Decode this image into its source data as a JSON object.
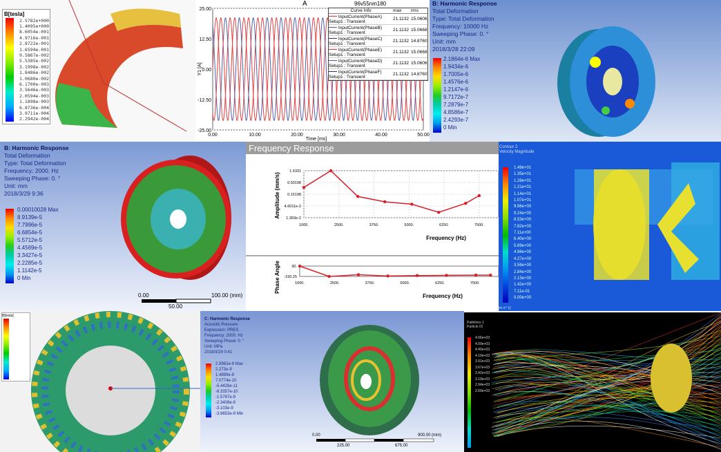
{
  "panel_magnet": {
    "legend_title": "B[tesla]",
    "levels": [
      "2.5782e+000",
      "1.4095e+000",
      "8.6054e-001",
      "4.9716e-001",
      "2.8722e-001",
      "1.6594e-001",
      "9.5867e-002",
      "5.5385e-002",
      "3.1998e-002",
      "1.8486e-002",
      "1.0680e-002",
      "6.1700e-003",
      "3.5646e-003",
      "2.0594e-003",
      "1.1898e-003",
      "6.8736e-004",
      "3.9711e-004",
      "2.2942e-004"
    ]
  },
  "panel_current": {
    "title": "A",
    "project": "96v55nm180",
    "ylabel": "Y1 [A]",
    "xlabel": "Time [ms]",
    "yticks": [
      "25.00",
      "12.50",
      "0.00",
      "-12.50",
      "-25.00"
    ],
    "xticks": [
      "0.00",
      "10.00",
      "20.00",
      "30.00",
      "40.00",
      "50.00"
    ],
    "legend_headers": [
      "Curve Info",
      "max",
      "rms"
    ],
    "curves": [
      {
        "name": "InputCurrent(PhaseA)",
        "setup": "Setup1 : Transient",
        "max": "21.1132",
        "rms": "15.0606",
        "color": "#e03030"
      },
      {
        "name": "InputCurrent(PhaseB)",
        "setup": "Setup1 : Transient",
        "max": "21.1132",
        "rms": "15.0668",
        "color": "#4a58a8"
      },
      {
        "name": "InputCurrent(PhaseC)",
        "setup": "Setup1 : Transient",
        "max": "21.1132",
        "rms": "14.8760",
        "color": "#2a2a80"
      },
      {
        "name": "InputCurrent(PhaseE)",
        "setup": "Setup1 : Transient",
        "max": "21.1132",
        "rms": "15.0668",
        "color": "#e03030"
      },
      {
        "name": "InputCurrent(PhaseD)",
        "setup": "Setup1 : Transient",
        "max": "21.1132",
        "rms": "15.0606",
        "color": "#4a58a8"
      },
      {
        "name": "InputCurrent(PhaseF)",
        "setup": "Setup1 : Transient",
        "max": "21.1132",
        "rms": "14.8760",
        "color": "#2a2a80"
      }
    ]
  },
  "panel_wheel_10k": {
    "title": "B: Harmonic Response",
    "lines": [
      "Total Deformation",
      "Type: Total Deformation",
      "Frequency: 10000 Hz",
      "Sweeping Phase: 0. °",
      "Unit: mm",
      "2018/3/28 22:09"
    ],
    "levels": [
      "2.1864e-6 Max",
      "1.9434e-6",
      "1.7005e-6",
      "1.4576e-6",
      "1.2147e-6",
      "9.7172e-7",
      "7.2879e-7",
      "4.8586e-7",
      "2.4293e-7",
      "0 Min"
    ]
  },
  "panel_wheel_2k": {
    "title": "B: Harmonic Response",
    "lines": [
      "Total Deformation",
      "Type: Total Deformation",
      "Frequency: 2000. Hz",
      "Sweeping Phase: 0. °",
      "Unit: mm",
      "2018/3/29 9:36"
    ],
    "levels": [
      "0.00010028 Max",
      "8.9139e-5",
      "7.7996e-5",
      "6.6854e-5",
      "5.5712e-5",
      "4.4569e-5",
      "3.3427e-5",
      "2.2285e-5",
      "1.1142e-5",
      "0 Min"
    ],
    "scale": [
      "0.00",
      "100.00 (mm)",
      "50.00"
    ]
  },
  "chart_data": {
    "title": "Frequency Response",
    "type": "line",
    "amplitude": {
      "ylabel": "Amplitude (mm/s)",
      "xlabel": "Frequency (Hz)",
      "yscale": "log",
      "yticks": [
        "1.6331",
        "0.50198",
        "0.15198",
        "4.6011e-2",
        "1.393e-2"
      ],
      "xticks": [
        "1000.",
        "2500.",
        "3750.",
        "5000.",
        "6250.",
        "7500."
      ],
      "x": [
        1000,
        2000,
        3000,
        4000,
        5000,
        6000,
        7000,
        7500
      ],
      "y": [
        0.3,
        1.6331,
        0.12,
        0.07,
        0.055,
        0.024,
        0.06,
        0.13
      ]
    },
    "phase": {
      "ylabel": "Phase Angle",
      "xlabel": "Frequency (Hz)",
      "yticks": [
        "90.",
        "-150.25"
      ],
      "xticks": [
        "1000.",
        "2500.",
        "3750.",
        "5000.",
        "6250.",
        "7500."
      ],
      "x": [
        1000,
        2000,
        3000,
        4000,
        5000,
        6000,
        7000,
        7500
      ],
      "y": [
        90,
        -150,
        -110,
        -140,
        -130,
        -125,
        -120,
        -120
      ]
    }
  },
  "panel_velocity": {
    "title": "Contour 2",
    "subtitle": "Velocity Magnitude",
    "levels": [
      "1.49e+01",
      "1.35e+01",
      "1.28e+01",
      "1.21e+01",
      "1.14e+01",
      "1.07e+01",
      "9.96e+00",
      "9.24e+00",
      "8.53e+00",
      "7.82e+00",
      "7.11e+00",
      "6.40e+00",
      "5.69e+00",
      "4.98e+00",
      "4.27e+00",
      "3.56e+00",
      "2.84e+00",
      "2.13e+00",
      "1.42e+00",
      "7.11e-01",
      "0.00e+00"
    ],
    "unit": "[m s^-1]"
  },
  "panel_ring": {
    "legend_title": "B[tesla]"
  },
  "panel_disk": {
    "title": "C: Harmonic Response",
    "lines": [
      "Acoustic Pressure",
      "Expression: PRES",
      "Frequency: 2000. Hz",
      "Sweeping Phase: 0. °",
      "Unit: MPa",
      "2018/3/29 0:41"
    ],
    "levels": [
      "2.9962e-9 Max",
      "2.273e-9",
      "1.4899e-9",
      "7.0774e-10",
      "-5.4428e-11",
      "-8.3357e-10",
      "-1.5787e-9",
      "-2.3408e-9",
      "-3.103e-9",
      "-3.8653e-9 Min"
    ],
    "scale": [
      "0.00",
      "900.00 (mm)",
      "225.00",
      "675.00"
    ]
  },
  "panel_streamline": {
    "title": "Pathlines 1",
    "subtitle": "Particle ID",
    "levels": [
      "4.66e+03",
      "4.09e+03",
      "4.40e+03",
      "4.19e+03",
      "3.91e+03",
      "3.67e+03",
      "3.42e+03",
      "3.19e+03",
      "2.94e+03",
      "2.69e+03"
    ]
  }
}
